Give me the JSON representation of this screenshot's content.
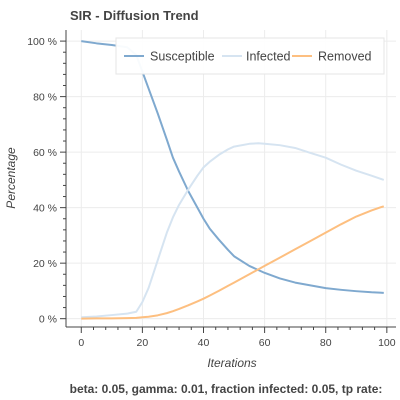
{
  "chart_data": {
    "type": "line",
    "title": "SIR - Diffusion Trend",
    "xlabel": "Iterations",
    "ylabel": "Percentage",
    "xlim": [
      -5,
      103
    ],
    "ylim": [
      -3,
      104
    ],
    "xticks": [
      0,
      20,
      40,
      60,
      80,
      100
    ],
    "yticks": [
      0,
      20,
      40,
      60,
      80,
      100
    ],
    "ytick_suffix": " %",
    "grid": true,
    "legend_position": "top-right",
    "series": [
      {
        "name": "Susceptible",
        "color": "#7fa9cf",
        "x": [
          0,
          5,
          10,
          15,
          18,
          20,
          22,
          25,
          28,
          30,
          32,
          35,
          38,
          40,
          42,
          45,
          48,
          50,
          55,
          60,
          65,
          70,
          75,
          80,
          85,
          90,
          95,
          99
        ],
        "y": [
          100,
          99.2,
          98.6,
          97.8,
          95,
          89,
          83,
          74,
          64.5,
          58,
          53,
          46,
          40,
          36,
          32.5,
          28.5,
          24.8,
          22.5,
          19,
          16.5,
          14.5,
          13,
          12,
          11,
          10.4,
          9.9,
          9.5,
          9.3
        ]
      },
      {
        "name": "Infected",
        "color": "#d6e4f1",
        "x": [
          0,
          5,
          10,
          15,
          18,
          20,
          22,
          25,
          28,
          30,
          32,
          35,
          38,
          40,
          42,
          45,
          48,
          50,
          55,
          58,
          60,
          65,
          70,
          75,
          80,
          85,
          90,
          95,
          99
        ],
        "y": [
          0.5,
          0.8,
          1.3,
          1.8,
          2.5,
          6,
          11,
          21,
          31,
          36.5,
          41,
          46.5,
          51.5,
          54.5,
          56.5,
          59,
          61,
          62,
          63,
          63.2,
          63,
          62.5,
          61.5,
          59.7,
          58,
          55.5,
          53.3,
          51.5,
          50
        ]
      },
      {
        "name": "Removed",
        "color": "#fdbf80",
        "x": [
          0,
          5,
          10,
          15,
          18,
          20,
          22,
          25,
          28,
          30,
          32,
          35,
          38,
          40,
          42,
          45,
          48,
          50,
          55,
          60,
          65,
          70,
          75,
          80,
          85,
          90,
          95,
          99
        ],
        "y": [
          0,
          0.1,
          0.1,
          0.2,
          0.3,
          0.5,
          0.7,
          1.2,
          2,
          2.7,
          3.5,
          4.8,
          6.2,
          7.2,
          8.3,
          10,
          11.8,
          13,
          16,
          19,
          22,
          25,
          28,
          31,
          34,
          36.8,
          39,
          40.5
        ]
      }
    ]
  },
  "footer_text": "beta: 0.05, gamma: 0.01, fraction infected: 0.05, tp rate:"
}
